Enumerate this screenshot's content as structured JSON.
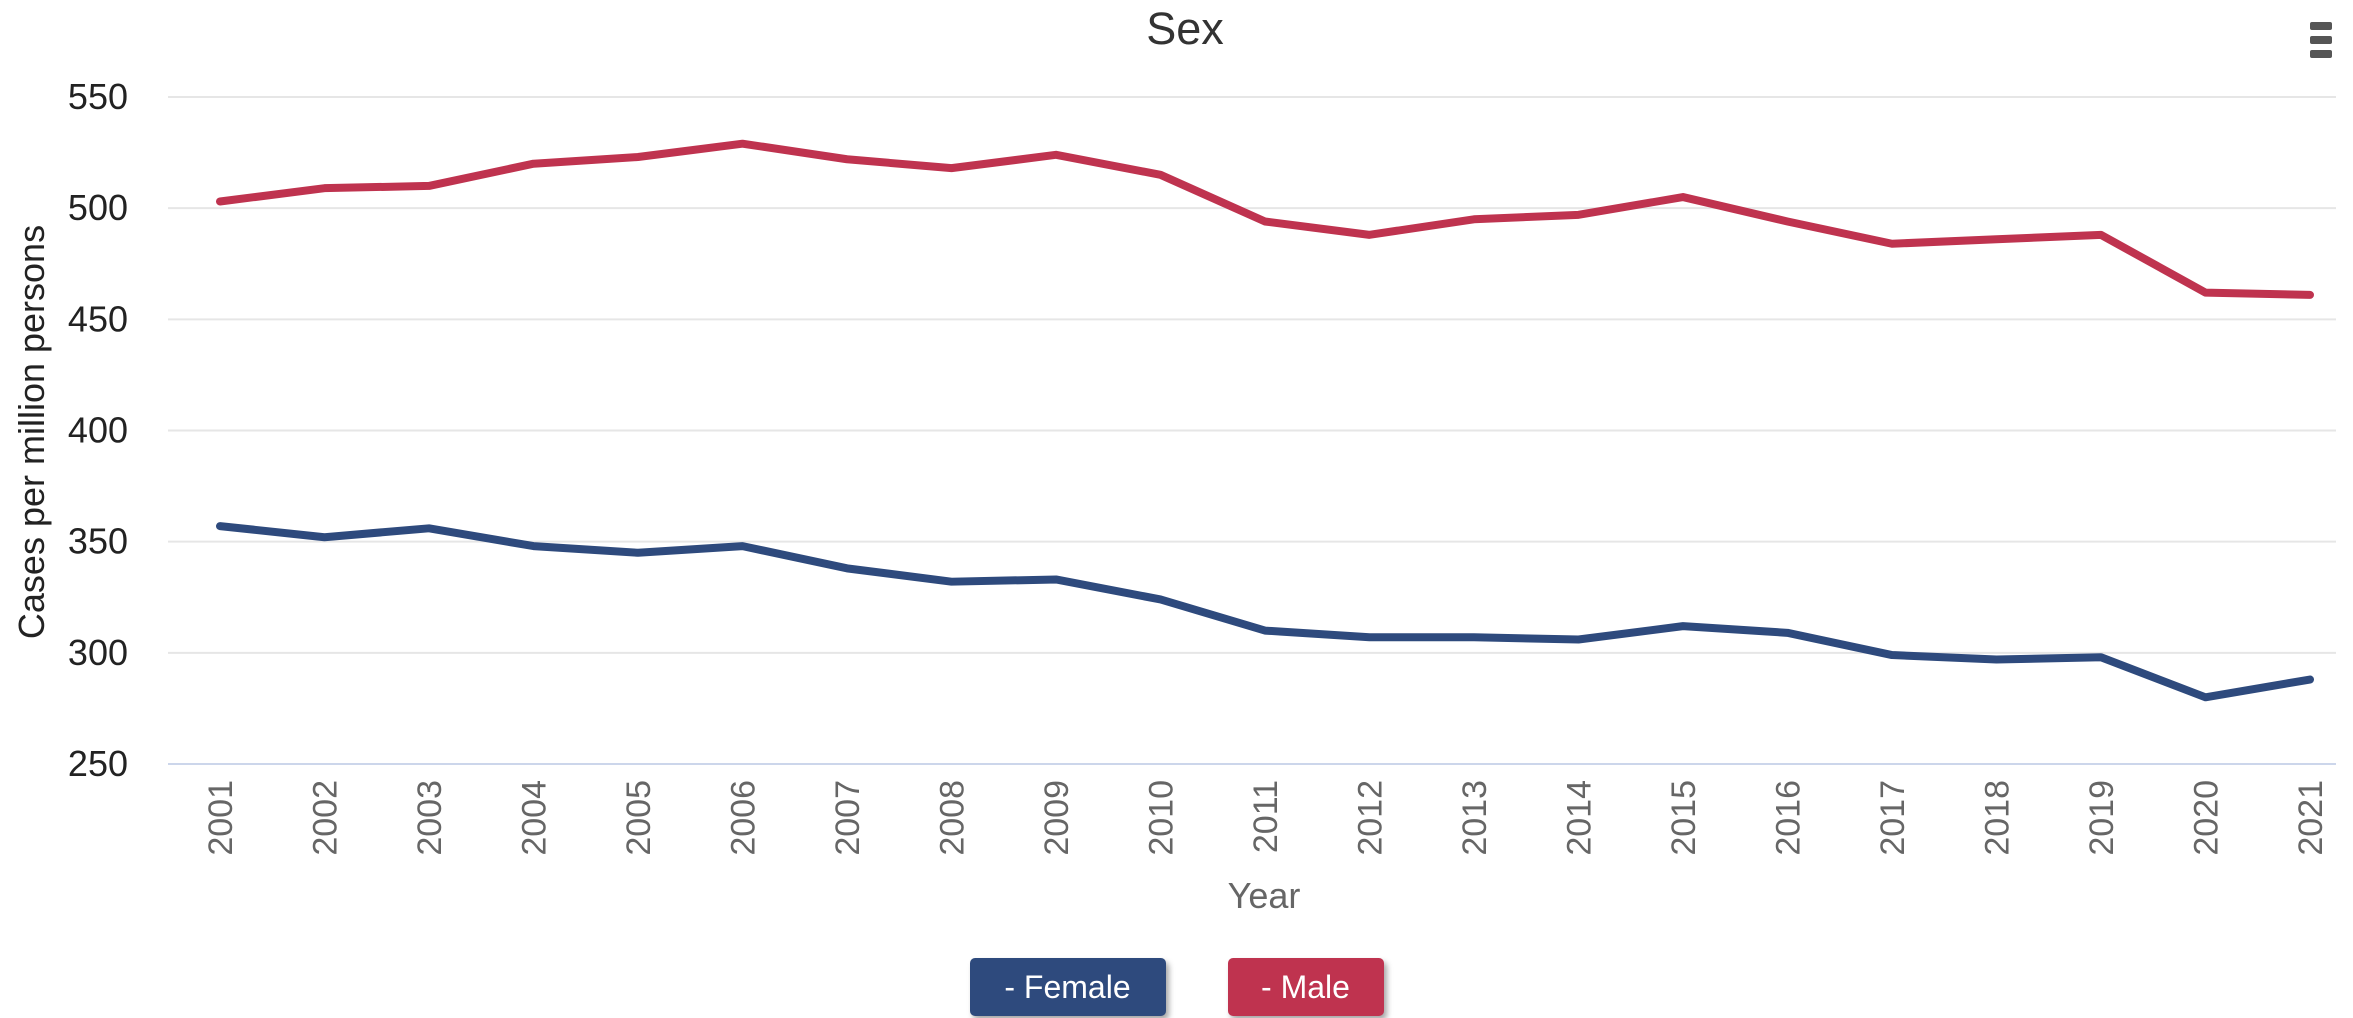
{
  "chart_data": {
    "type": "line",
    "title": "Sex",
    "xlabel": "Year",
    "ylabel": "Cases per million persons",
    "ylim": [
      250,
      550
    ],
    "yticks": [
      250,
      300,
      350,
      400,
      450,
      500,
      550
    ],
    "categories": [
      "2001",
      "2002",
      "2003",
      "2004",
      "2005",
      "2006",
      "2007",
      "2008",
      "2009",
      "2010",
      "2011",
      "2012",
      "2013",
      "2014",
      "2015",
      "2016",
      "2017",
      "2018",
      "2019",
      "2020",
      "2021"
    ],
    "grid": true,
    "legend_position": "bottom-center",
    "series": [
      {
        "name": "Female",
        "legend_label": "- Female",
        "color": "#2e4a7d",
        "values": [
          357,
          352,
          356,
          348,
          345,
          348,
          338,
          332,
          333,
          324,
          310,
          307,
          307,
          306,
          312,
          309,
          299,
          297,
          298,
          280,
          288
        ]
      },
      {
        "name": "Male",
        "legend_label": "- Male",
        "color": "#bf334f",
        "values": [
          503,
          509,
          510,
          520,
          523,
          529,
          522,
          518,
          524,
          515,
          494,
          488,
          495,
          497,
          505,
          494,
          484,
          486,
          488,
          462,
          461
        ]
      }
    ]
  },
  "menu": {
    "icon": "hamburger-icon"
  }
}
